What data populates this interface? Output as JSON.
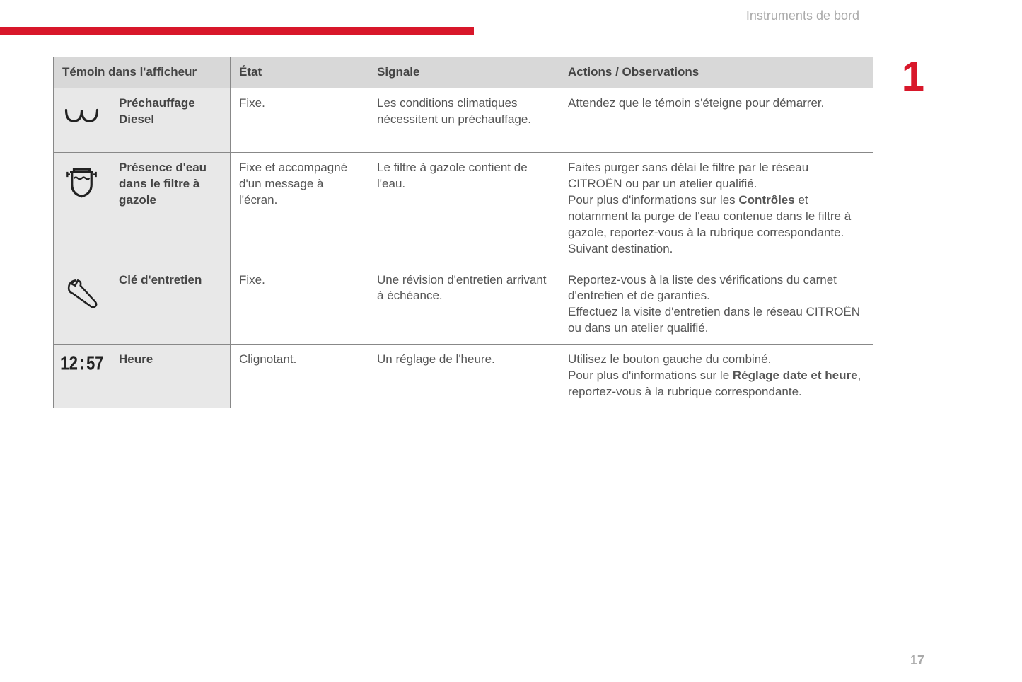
{
  "header": {
    "section_title": "Instruments de bord",
    "chapter_number": "1",
    "page_number": "17",
    "red_bar_color": "#d8172a"
  },
  "table": {
    "columns": {
      "indicator": "Témoin dans l'afficheur",
      "state": "État",
      "signals": "Signale",
      "actions": "Actions / Observations"
    },
    "rows": [
      {
        "icon": "diesel-preheat",
        "name": "Préchauffage Diesel",
        "state": "Fixe.",
        "signals": "Les conditions climatiques nécessitent un préchauffage.",
        "actions_parts": [
          {
            "text": "Attendez que le témoin s'éteigne pour démarrer.",
            "bold": false
          }
        ]
      },
      {
        "icon": "water-in-filter",
        "name": "Présence d'eau dans le filtre à gazole",
        "state": "Fixe et accompagné d'un message à l'écran.",
        "signals": "Le filtre à gazole contient de l'eau.",
        "actions_parts": [
          {
            "text": "Faites purger sans délai le filtre par le réseau CITROËN ou par un atelier qualifié.",
            "bold": false
          },
          {
            "br": true
          },
          {
            "text": "Pour plus d'informations sur les ",
            "bold": false
          },
          {
            "text": "Contrôles",
            "bold": true
          },
          {
            "text": " et notamment la purge de l'eau contenue dans le filtre à gazole, reportez-vous à la rubrique correspondante.",
            "bold": false
          },
          {
            "br": true
          },
          {
            "text": "Suivant destination.",
            "bold": false
          }
        ]
      },
      {
        "icon": "service-spanner",
        "name": "Clé d'entretien",
        "state": "Fixe.",
        "signals": "Une révision d'entretien arrivant à échéance.",
        "actions_parts": [
          {
            "text": "Reportez-vous à la liste des vérifications du carnet d'entretien et de garanties.",
            "bold": false
          },
          {
            "br": true
          },
          {
            "text": "Effectuez la visite d'entretien dans le réseau CITROËN ou dans un atelier qualifié.",
            "bold": false
          }
        ]
      },
      {
        "icon": "clock",
        "clock_display": "12:57",
        "name": "Heure",
        "state": "Clignotant.",
        "signals": "Un réglage de l'heure.",
        "actions_parts": [
          {
            "text": "Utilisez le bouton gauche du combiné.",
            "bold": false
          },
          {
            "br": true
          },
          {
            "text": "Pour plus d'informations sur le ",
            "bold": false
          },
          {
            "text": "Réglage date et heure",
            "bold": true
          },
          {
            "text": ", reportez-vous à la rubrique correspondante.",
            "bold": false
          }
        ]
      }
    ]
  }
}
